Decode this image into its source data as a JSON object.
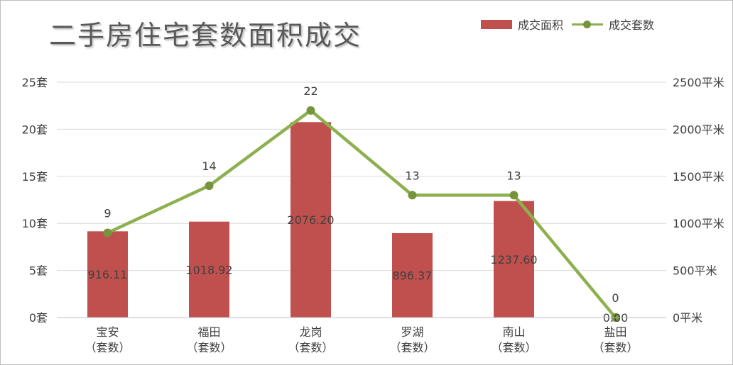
{
  "chart_data": {
    "type": "bar+line",
    "title": "二手房住宅套数面积成交",
    "categories": [
      "宝安（套数）",
      "福田（套数）",
      "龙岗（套数）",
      "罗湖（套数）",
      "南山（套数）",
      "盐田（套数）"
    ],
    "category_lines": [
      [
        "宝安",
        "（套数）"
      ],
      [
        "福田",
        "（套数）"
      ],
      [
        "龙岗",
        "（套数）"
      ],
      [
        "罗湖",
        "（套数）"
      ],
      [
        "南山",
        "（套数）"
      ],
      [
        "盐田",
        "（套数）"
      ]
    ],
    "series": [
      {
        "name": "成交面积",
        "type": "bar",
        "axis": "right",
        "color": "#c0504d",
        "values": [
          916.11,
          1018.92,
          2076.2,
          896.37,
          1237.6,
          0.0
        ],
        "labels": [
          "916.11",
          "1018.92",
          "2076.20",
          "896.37",
          "1237.60",
          "0.00"
        ]
      },
      {
        "name": "成交套数",
        "type": "line",
        "axis": "left",
        "color": "#8db04f",
        "marker_color": "#76943c",
        "values": [
          9,
          14,
          22,
          13,
          13,
          0
        ],
        "labels": [
          "9",
          "14",
          "22",
          "13",
          "13",
          "0"
        ]
      }
    ],
    "y_left": {
      "range": [
        0,
        25
      ],
      "ticks": [
        0,
        5,
        10,
        15,
        20,
        25
      ],
      "tick_labels": [
        "0套",
        "5套",
        "10套",
        "15套",
        "20套",
        "25套"
      ]
    },
    "y_right": {
      "range": [
        0,
        2500
      ],
      "ticks": [
        0,
        500,
        1000,
        1500,
        2000,
        2500
      ],
      "tick_labels": [
        "0平米",
        "500平米",
        "1000平米",
        "1500平米",
        "2000平米",
        "2500平米"
      ]
    },
    "grid": true,
    "legend_position": "top-right"
  }
}
